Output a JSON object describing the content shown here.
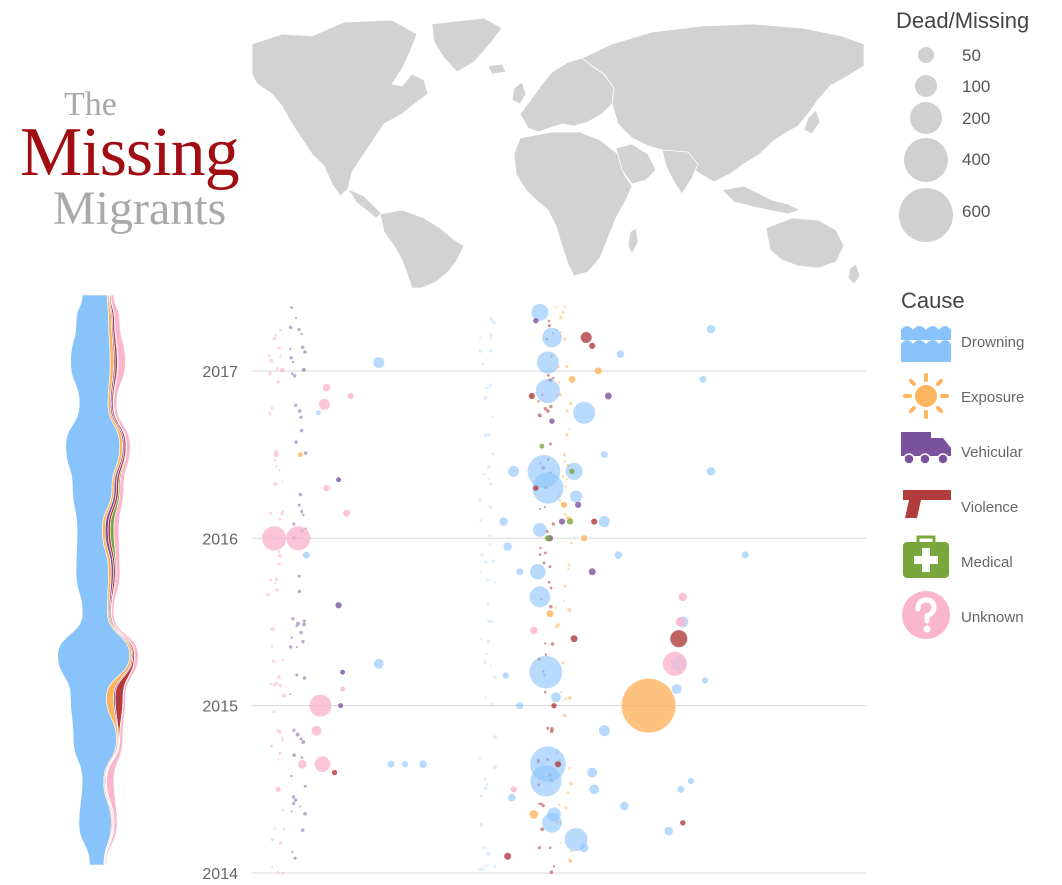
{
  "title": {
    "line1": "The",
    "line2": "Missing",
    "line3": "Migrants"
  },
  "size_legend": {
    "title": "Dead/Missing",
    "items": [
      {
        "value": 50,
        "label": "50"
      },
      {
        "value": 100,
        "label": "100"
      },
      {
        "value": 200,
        "label": "200"
      },
      {
        "value": 400,
        "label": "400"
      },
      {
        "value": 600,
        "label": "600"
      }
    ]
  },
  "cause_legend": {
    "title": "Cause",
    "items": [
      {
        "key": "drowning",
        "label": "Drowning",
        "color": "#88c3fb",
        "icon": "waves-icon"
      },
      {
        "key": "exposure",
        "label": "Exposure",
        "color": "#fdb45e",
        "icon": "sun-icon"
      },
      {
        "key": "vehicular",
        "label": "Vehicular",
        "color": "#7a529b",
        "icon": "truck-icon"
      },
      {
        "key": "violence",
        "label": "Violence",
        "color": "#b23b3b",
        "icon": "gun-icon"
      },
      {
        "key": "medical",
        "label": "Medical",
        "color": "#7aa73c",
        "icon": "medical-kit-icon"
      },
      {
        "key": "unknown",
        "label": "Unknown",
        "color": "#fab5cf",
        "icon": "question-icon"
      }
    ]
  },
  "colors": {
    "map_land": "#d2d2d2",
    "gridline": "#d8d8d8",
    "axis_text": "#666666"
  },
  "chart_data": {
    "type": "scatter",
    "title": "The Missing Migrants",
    "ylabel": "",
    "y_ticks": [
      "2014",
      "2015",
      "2016",
      "2017"
    ],
    "ylim": [
      2014.0,
      2017.4
    ],
    "x_encoding": "longitude",
    "xlim": [
      -125,
      180
    ],
    "size_encoding": "Dead/Missing",
    "color_encoding": "Cause",
    "series": [
      {
        "name": "Drowning",
        "points": [
          [
            103,
            2017.25,
            15
          ],
          [
            99,
            2016.95,
            10
          ],
          [
            103,
            2016.4,
            15
          ],
          [
            120,
            2015.9,
            10
          ],
          [
            -98,
            2015.9,
            10
          ],
          [
            -62,
            2017.05,
            25
          ],
          [
            -92,
            2016.75,
            5
          ],
          [
            20,
            2016.4,
            220
          ],
          [
            22,
            2016.3,
            200
          ],
          [
            35,
            2016.4,
            60
          ],
          [
            18,
            2015.65,
            90
          ],
          [
            21,
            2015.2,
            220
          ],
          [
            22,
            2014.65,
            260
          ],
          [
            21,
            2014.55,
            200
          ],
          [
            24,
            2014.3,
            80
          ],
          [
            36,
            2014.2,
            110
          ],
          [
            40,
            2016.75,
            100
          ],
          [
            22,
            2016.88,
            120
          ],
          [
            22,
            2017.05,
            100
          ],
          [
            18,
            2017.35,
            60
          ],
          [
            24,
            2017.2,
            80
          ],
          [
            -62,
            2015.25,
            20
          ],
          [
            -56,
            2014.65,
            10
          ],
          [
            5,
            2016.4,
            25
          ],
          [
            0,
            2016.1,
            15
          ],
          [
            2,
            2015.95,
            15
          ],
          [
            17,
            2015.8,
            50
          ],
          [
            18,
            2016.05,
            40
          ],
          [
            50,
            2016.1,
            25
          ],
          [
            26,
            2015.05,
            20
          ],
          [
            50,
            2014.85,
            25
          ],
          [
            44,
            2014.6,
            20
          ],
          [
            40,
            2014.15,
            15
          ],
          [
            45,
            2014.5,
            20
          ],
          [
            87,
            2015.25,
            50
          ],
          [
            89,
            2015.5,
            25
          ],
          [
            82,
            2014.25,
            15
          ],
          [
            93,
            2014.55,
            8
          ],
          [
            4,
            2014.45,
            12
          ],
          [
            8,
            2015.8,
            10
          ],
          [
            25,
            2014.35,
            40
          ],
          [
            -40,
            2014.65,
            12
          ],
          [
            -49,
            2014.65,
            8
          ],
          [
            8,
            2015.0,
            10
          ],
          [
            1,
            2015.18,
            8
          ],
          [
            60,
            2014.4,
            15
          ],
          [
            50,
            2016.5,
            10
          ],
          [
            36,
            2016.25,
            30
          ],
          [
            57,
            2015.9,
            12
          ],
          [
            58,
            2017.1,
            12
          ],
          [
            86,
            2015.1,
            20
          ],
          [
            100,
            2015.15,
            8
          ],
          [
            88,
            2014.5,
            10
          ]
        ]
      },
      {
        "name": "Exposure",
        "points": [
          [
            72,
            2015.0,
            600
          ],
          [
            -101,
            2016.5,
            5
          ],
          [
            15,
            2014.35,
            15
          ],
          [
            34,
            2016.95,
            10
          ],
          [
            40,
            2016.0,
            8
          ],
          [
            47,
            2017.0,
            10
          ],
          [
            30,
            2016.2,
            8
          ],
          [
            23,
            2015.55,
            10
          ]
        ]
      },
      {
        "name": "Vehicular",
        "points": [
          [
            -82,
            2016.35,
            5
          ],
          [
            -82,
            2015.6,
            8
          ],
          [
            52,
            2016.85,
            10
          ],
          [
            44,
            2015.8,
            10
          ],
          [
            37,
            2016.2,
            8
          ],
          [
            23,
            2016.0,
            8
          ],
          [
            29,
            2016.1,
            8
          ],
          [
            24,
            2016.7,
            6
          ],
          [
            16,
            2017.3,
            6
          ],
          [
            -81,
            2015.0,
            5
          ],
          [
            -80,
            2015.2,
            5
          ]
        ]
      },
      {
        "name": "Violence",
        "points": [
          [
            41,
            2017.2,
            25
          ],
          [
            87,
            2015.4,
            60
          ],
          [
            2,
            2014.1,
            10
          ],
          [
            35,
            2015.4,
            10
          ],
          [
            27,
            2014.65,
            8
          ],
          [
            45,
            2016.1,
            8
          ],
          [
            25,
            2015.0,
            6
          ],
          [
            89,
            2014.3,
            6
          ],
          [
            -84,
            2014.6,
            6
          ],
          [
            44,
            2017.15,
            8
          ],
          [
            16,
            2016.3,
            6
          ],
          [
            14,
            2016.85,
            8
          ]
        ]
      },
      {
        "name": "Medical",
        "points": [
          [
            33,
            2016.1,
            8
          ],
          [
            22,
            2016.0,
            8
          ],
          [
            34,
            2016.4,
            6
          ],
          [
            19,
            2016.55,
            5
          ]
        ]
      },
      {
        "name": "Unknown",
        "points": [
          [
            -114,
            2016.0,
            120
          ],
          [
            -102,
            2016.0,
            120
          ],
          [
            -91,
            2015.0,
            100
          ],
          [
            -93,
            2014.85,
            20
          ],
          [
            -90,
            2014.65,
            50
          ],
          [
            -100,
            2014.65,
            15
          ],
          [
            -89,
            2016.8,
            25
          ],
          [
            -88,
            2016.9,
            12
          ],
          [
            -78,
            2016.15,
            10
          ],
          [
            -76,
            2016.85,
            8
          ],
          [
            85,
            2015.25,
            120
          ],
          [
            88,
            2015.5,
            20
          ],
          [
            89,
            2015.65,
            15
          ],
          [
            15,
            2015.45,
            12
          ],
          [
            -88,
            2016.3,
            8
          ],
          [
            -113,
            2016.5,
            5
          ],
          [
            -112,
            2014.5,
            5
          ],
          [
            -80,
            2015.1,
            5
          ],
          [
            5,
            2014.5,
            8
          ]
        ]
      }
    ],
    "stream": {
      "title": "",
      "x_meaning": "monthly dead/missing by cause, stacked and centered",
      "years": [
        2014.0,
        2014.25,
        2014.5,
        2014.75,
        2015.0,
        2015.25,
        2015.5,
        2015.75,
        2016.0,
        2016.25,
        2016.5,
        2016.75,
        2017.0,
        2017.25,
        2017.4
      ],
      "series": [
        {
          "name": "Drowning",
          "values": [
            40,
            90,
            60,
            120,
            100,
            200,
            70,
            90,
            70,
            110,
            150,
            80,
            110,
            90,
            70
          ]
        },
        {
          "name": "Exposure",
          "values": [
            2,
            3,
            3,
            4,
            20,
            6,
            4,
            8,
            8,
            6,
            8,
            6,
            10,
            8,
            4
          ]
        },
        {
          "name": "Vehicular",
          "values": [
            1,
            2,
            2,
            2,
            4,
            3,
            3,
            6,
            8,
            6,
            4,
            4,
            4,
            3,
            2
          ]
        },
        {
          "name": "Violence",
          "values": [
            1,
            2,
            2,
            2,
            22,
            4,
            3,
            5,
            6,
            6,
            5,
            4,
            6,
            5,
            3
          ]
        },
        {
          "name": "Medical",
          "values": [
            0,
            1,
            1,
            1,
            1,
            1,
            1,
            3,
            10,
            4,
            2,
            2,
            2,
            1,
            1
          ]
        },
        {
          "name": "Unknown",
          "values": [
            3,
            8,
            20,
            8,
            6,
            10,
            6,
            10,
            14,
            10,
            10,
            8,
            20,
            14,
            8
          ]
        }
      ]
    }
  }
}
